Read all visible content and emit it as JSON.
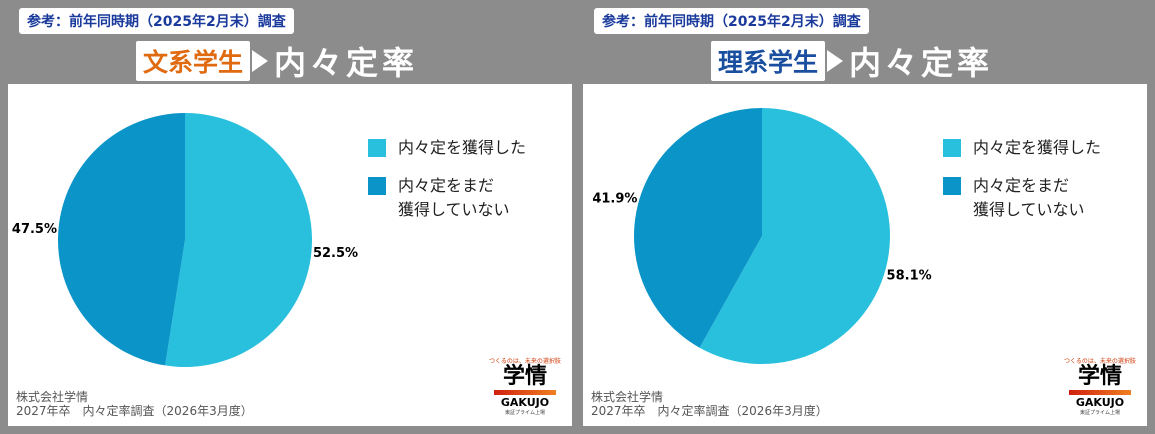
{
  "colors": {
    "obtained": "#29c0de",
    "not_obtained": "#0a94c8"
  },
  "panels": [
    {
      "reference": "参考：前年同時期（2025年2月末）調査",
      "group": "文系学生",
      "group_color": "#e06a10",
      "title": "内々定率"
    },
    {
      "reference": "参考：前年同時期（2025年2月末）調査",
      "group": "理系学生",
      "group_color": "#1a4fa0",
      "title": "内々定率"
    }
  ],
  "legend": {
    "obtained": "内々定を獲得した",
    "not_obtained_1": "内々定をまだ",
    "not_obtained_2": "獲得していない"
  },
  "footer": {
    "company": "株式会社学情",
    "survey": "2027年卒　内々定率調査（2026年3月度）"
  },
  "logo": {
    "tagline": "つくるのは、未来の選択肢",
    "name": "学情",
    "roman": "GAKUJO",
    "sub": "東証プライム上場"
  },
  "chart_data": [
    {
      "type": "pie",
      "categories": [
        "内々定を獲得した",
        "内々定をまだ獲得していない"
      ],
      "values": [
        52.5,
        47.5
      ],
      "labels": [
        "52.5%",
        "47.5%"
      ],
      "legend": "right"
    },
    {
      "type": "pie",
      "categories": [
        "内々定を獲得した",
        "内々定をまだ獲得していない"
      ],
      "values": [
        58.1,
        41.9
      ],
      "labels": [
        "58.1%",
        "41.9%"
      ],
      "legend": "right"
    }
  ]
}
